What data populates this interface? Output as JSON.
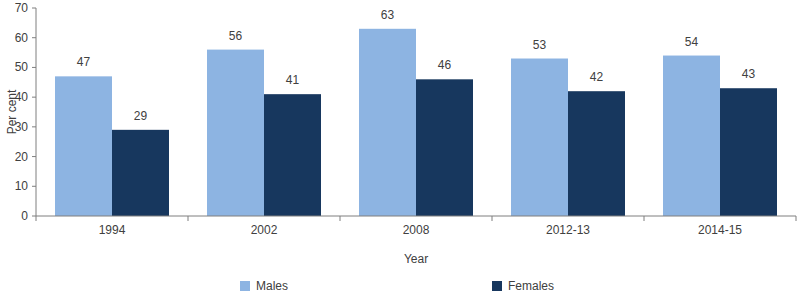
{
  "chart_data": {
    "type": "bar",
    "x_label": "Year",
    "y_label": "Per cent",
    "categories": [
      "1994",
      "2002",
      "2008",
      "2012-13",
      "2014-15"
    ],
    "series": [
      {
        "name": "Males",
        "color": "#8db4e2",
        "values": [
          47,
          56,
          63,
          53,
          54
        ]
      },
      {
        "name": "Females",
        "color": "#17375e",
        "values": [
          29,
          41,
          46,
          42,
          43
        ]
      }
    ],
    "ylim": [
      0,
      70
    ],
    "yticks": [
      0,
      10,
      20,
      30,
      40,
      50,
      60,
      70
    ],
    "grid": false,
    "legend": "bottom",
    "data_labels": true
  }
}
